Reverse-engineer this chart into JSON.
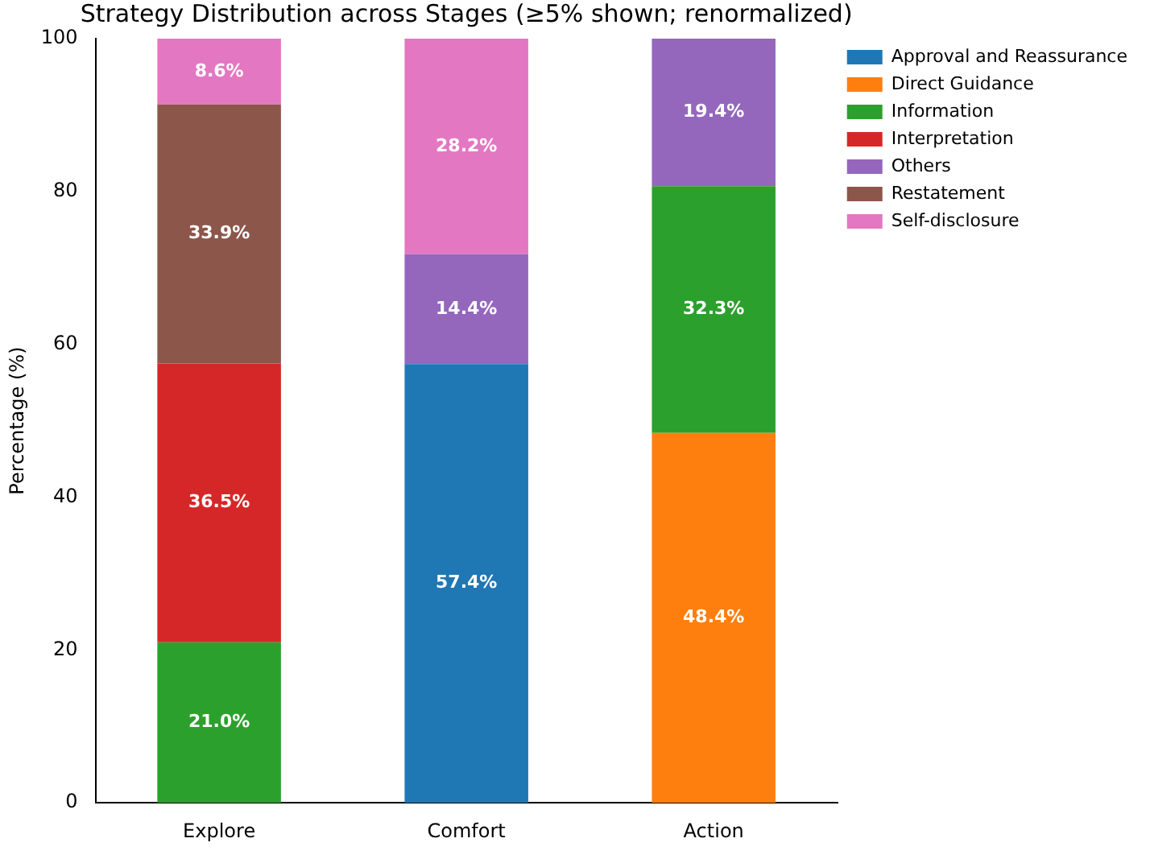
{
  "chart_data": {
    "type": "bar",
    "title": "Strategy Distribution across Stages (≥5% shown; renormalized)",
    "ylabel": "Percentage (%)",
    "categories": [
      "Explore",
      "Comfort",
      "Action"
    ],
    "stacked": true,
    "ylim": [
      0,
      100
    ],
    "yticks": [
      0,
      20,
      40,
      60,
      80,
      100
    ],
    "grid": false,
    "legend": "top right",
    "series": [
      {
        "name": "Approval and Reassurance",
        "color": "#1f77b4",
        "values": [
          0,
          57.4,
          0
        ],
        "value_labels": [
          null,
          "57.4%",
          null
        ]
      },
      {
        "name": "Direct Guidance",
        "color": "#ff7f0e",
        "values": [
          0,
          0,
          48.4
        ],
        "value_labels": [
          null,
          null,
          "48.4%"
        ]
      },
      {
        "name": "Information",
        "color": "#2ca02c",
        "values": [
          21.0,
          0,
          32.3
        ],
        "value_labels": [
          "21.0%",
          null,
          "32.3%"
        ]
      },
      {
        "name": "Interpretation",
        "color": "#d62728",
        "values": [
          36.5,
          0,
          0
        ],
        "value_labels": [
          "36.5%",
          null,
          null
        ]
      },
      {
        "name": "Others",
        "color": "#9467bd",
        "values": [
          0,
          14.4,
          19.4
        ],
        "value_labels": [
          null,
          "14.4%",
          "19.4%"
        ]
      },
      {
        "name": "Restatement",
        "color": "#8c564b",
        "values": [
          33.9,
          0,
          0
        ],
        "value_labels": [
          "33.9%",
          null,
          null
        ]
      },
      {
        "name": "Self-disclosure",
        "color": "#e377c2",
        "values": [
          8.6,
          28.2,
          0
        ],
        "value_labels": [
          "8.6%",
          "28.2%",
          null
        ]
      }
    ]
  }
}
